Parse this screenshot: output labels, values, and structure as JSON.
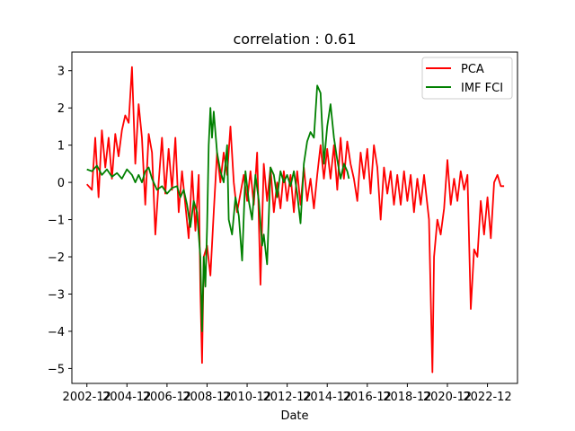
{
  "chart_data": {
    "type": "line",
    "title": "correlation : 0.61",
    "xlabel": "Date",
    "ylabel": "",
    "xlim": [
      "2002-03",
      "2024-06"
    ],
    "ylim": [
      -5.4,
      3.5
    ],
    "xticks": [
      "2002-12",
      "2004-12",
      "2006-12",
      "2008-12",
      "2010-12",
      "2012-12",
      "2014-12",
      "2016-12",
      "2018-12",
      "2020-12",
      "2022-12"
    ],
    "yticks": [
      3,
      2,
      1,
      0,
      -1,
      -2,
      -3,
      -4,
      -5
    ],
    "grid": false,
    "legend": "top-right",
    "series": [
      {
        "name": "PCA",
        "color": "#ff0000",
        "points": [
          [
            "2002-12",
            -0.05
          ],
          [
            "2003-03",
            -0.2
          ],
          [
            "2003-05",
            1.2
          ],
          [
            "2003-07",
            -0.4
          ],
          [
            "2003-09",
            1.4
          ],
          [
            "2003-11",
            0.4
          ],
          [
            "2004-01",
            1.2
          ],
          [
            "2004-03",
            0.1
          ],
          [
            "2004-05",
            1.3
          ],
          [
            "2004-07",
            0.7
          ],
          [
            "2004-09",
            1.4
          ],
          [
            "2004-11",
            1.8
          ],
          [
            "2005-01",
            1.6
          ],
          [
            "2005-03",
            3.1
          ],
          [
            "2005-05",
            0.5
          ],
          [
            "2005-07",
            2.1
          ],
          [
            "2005-09",
            1.2
          ],
          [
            "2005-11",
            -0.6
          ],
          [
            "2006-01",
            1.3
          ],
          [
            "2006-03",
            0.8
          ],
          [
            "2006-05",
            -1.4
          ],
          [
            "2006-07",
            0.0
          ],
          [
            "2006-09",
            1.2
          ],
          [
            "2006-11",
            -0.3
          ],
          [
            "2007-01",
            0.9
          ],
          [
            "2007-03",
            -0.2
          ],
          [
            "2007-05",
            1.2
          ],
          [
            "2007-07",
            -0.8
          ],
          [
            "2007-09",
            0.3
          ],
          [
            "2007-11",
            -0.6
          ],
          [
            "2008-01",
            -1.5
          ],
          [
            "2008-03",
            0.3
          ],
          [
            "2008-05",
            -1.3
          ],
          [
            "2008-07",
            0.2
          ],
          [
            "2008-08",
            -2.9
          ],
          [
            "2008-09",
            -4.85
          ],
          [
            "2008-10",
            -2.0
          ],
          [
            "2008-12",
            -1.7
          ],
          [
            "2009-02",
            -2.5
          ],
          [
            "2009-04",
            -0.8
          ],
          [
            "2009-06",
            0.8
          ],
          [
            "2009-08",
            0.0
          ],
          [
            "2009-10",
            0.8
          ],
          [
            "2009-12",
            0.2
          ],
          [
            "2010-02",
            1.5
          ],
          [
            "2010-04",
            0.0
          ],
          [
            "2010-06",
            -0.8
          ],
          [
            "2010-08",
            -0.3
          ],
          [
            "2010-10",
            0.2
          ],
          [
            "2010-12",
            -0.5
          ],
          [
            "2011-02",
            0.3
          ],
          [
            "2011-04",
            -0.6
          ],
          [
            "2011-06",
            0.8
          ],
          [
            "2011-08",
            -2.75
          ],
          [
            "2011-10",
            0.5
          ],
          [
            "2011-12",
            -0.5
          ],
          [
            "2012-02",
            0.4
          ],
          [
            "2012-04",
            -0.8
          ],
          [
            "2012-06",
            0.0
          ],
          [
            "2012-08",
            -0.7
          ],
          [
            "2012-10",
            0.3
          ],
          [
            "2012-12",
            -0.5
          ],
          [
            "2013-02",
            0.2
          ],
          [
            "2013-04",
            -0.8
          ],
          [
            "2013-06",
            0.3
          ],
          [
            "2013-08",
            -0.6
          ],
          [
            "2013-10",
            0.4
          ],
          [
            "2013-12",
            -0.5
          ],
          [
            "2014-02",
            0.1
          ],
          [
            "2014-04",
            -0.7
          ],
          [
            "2014-06",
            0.2
          ],
          [
            "2014-08",
            1.0
          ],
          [
            "2014-10",
            0.1
          ],
          [
            "2014-12",
            0.9
          ],
          [
            "2015-02",
            0.1
          ],
          [
            "2015-04",
            1.0
          ],
          [
            "2015-06",
            -0.2
          ],
          [
            "2015-08",
            1.2
          ],
          [
            "2015-10",
            0.1
          ],
          [
            "2015-12",
            1.1
          ],
          [
            "2016-02",
            0.5
          ],
          [
            "2016-04",
            0.1
          ],
          [
            "2016-06",
            -0.5
          ],
          [
            "2016-08",
            0.8
          ],
          [
            "2016-10",
            0.1
          ],
          [
            "2016-12",
            0.9
          ],
          [
            "2017-02",
            -0.3
          ],
          [
            "2017-04",
            1.0
          ],
          [
            "2017-06",
            0.4
          ],
          [
            "2017-08",
            -1.0
          ],
          [
            "2017-10",
            0.4
          ],
          [
            "2017-12",
            -0.3
          ],
          [
            "2018-02",
            0.3
          ],
          [
            "2018-04",
            -0.6
          ],
          [
            "2018-06",
            0.2
          ],
          [
            "2018-08",
            -0.6
          ],
          [
            "2018-10",
            0.3
          ],
          [
            "2018-12",
            -0.5
          ],
          [
            "2019-02",
            0.2
          ],
          [
            "2019-04",
            -0.8
          ],
          [
            "2019-06",
            0.1
          ],
          [
            "2019-08",
            -0.6
          ],
          [
            "2019-10",
            0.2
          ],
          [
            "2020-01",
            -1.0
          ],
          [
            "2020-03",
            -5.1
          ],
          [
            "2020-04",
            -2.0
          ],
          [
            "2020-06",
            -1.0
          ],
          [
            "2020-08",
            -1.4
          ],
          [
            "2020-10",
            -0.7
          ],
          [
            "2020-12",
            0.6
          ],
          [
            "2021-02",
            -0.6
          ],
          [
            "2021-04",
            0.1
          ],
          [
            "2021-06",
            -0.5
          ],
          [
            "2021-08",
            0.3
          ],
          [
            "2021-10",
            -0.2
          ],
          [
            "2021-12",
            0.2
          ],
          [
            "2022-02",
            -3.4
          ],
          [
            "2022-04",
            -1.8
          ],
          [
            "2022-06",
            -2.0
          ],
          [
            "2022-08",
            -0.5
          ],
          [
            "2022-10",
            -1.4
          ],
          [
            "2022-12",
            -0.4
          ],
          [
            "2023-02",
            -1.5
          ],
          [
            "2023-04",
            0.0
          ],
          [
            "2023-06",
            0.2
          ],
          [
            "2023-08",
            -0.1
          ],
          [
            "2023-10",
            -0.1
          ]
        ]
      },
      {
        "name": "IMF FCI",
        "color": "#008000",
        "points": [
          [
            "2002-12",
            0.35
          ],
          [
            "2003-03",
            0.3
          ],
          [
            "2003-06",
            0.45
          ],
          [
            "2003-09",
            0.2
          ],
          [
            "2003-12",
            0.35
          ],
          [
            "2004-03",
            0.15
          ],
          [
            "2004-06",
            0.25
          ],
          [
            "2004-09",
            0.1
          ],
          [
            "2004-12",
            0.35
          ],
          [
            "2005-03",
            0.2
          ],
          [
            "2005-05",
            0.0
          ],
          [
            "2005-07",
            0.2
          ],
          [
            "2005-09",
            0.0
          ],
          [
            "2005-11",
            0.3
          ],
          [
            "2006-01",
            0.4
          ],
          [
            "2006-03",
            0.1
          ],
          [
            "2006-06",
            -0.2
          ],
          [
            "2006-09",
            -0.1
          ],
          [
            "2006-12",
            -0.3
          ],
          [
            "2007-03",
            -0.15
          ],
          [
            "2007-06",
            -0.1
          ],
          [
            "2007-08",
            -0.4
          ],
          [
            "2007-10",
            -0.2
          ],
          [
            "2007-12",
            -0.6
          ],
          [
            "2008-02",
            -1.2
          ],
          [
            "2008-04",
            -0.5
          ],
          [
            "2008-06",
            -0.8
          ],
          [
            "2008-08",
            -2.0
          ],
          [
            "2008-09",
            -4.0
          ],
          [
            "2008-10",
            -2.0
          ],
          [
            "2008-11",
            -2.8
          ],
          [
            "2008-12",
            -1.2
          ],
          [
            "2009-01",
            1.0
          ],
          [
            "2009-02",
            2.0
          ],
          [
            "2009-03",
            1.2
          ],
          [
            "2009-04",
            1.9
          ],
          [
            "2009-06",
            0.8
          ],
          [
            "2009-08",
            0.3
          ],
          [
            "2009-10",
            0.0
          ],
          [
            "2009-12",
            1.0
          ],
          [
            "2010-01",
            -1.0
          ],
          [
            "2010-03",
            -1.4
          ],
          [
            "2010-05",
            -0.4
          ],
          [
            "2010-07",
            -0.9
          ],
          [
            "2010-09",
            -2.1
          ],
          [
            "2010-11",
            0.3
          ],
          [
            "2011-01",
            -0.5
          ],
          [
            "2011-03",
            -1.0
          ],
          [
            "2011-05",
            0.2
          ],
          [
            "2011-07",
            -0.5
          ],
          [
            "2011-09",
            -1.7
          ],
          [
            "2011-10",
            -1.4
          ],
          [
            "2011-12",
            -2.2
          ],
          [
            "2012-02",
            0.4
          ],
          [
            "2012-04",
            0.2
          ],
          [
            "2012-06",
            -0.4
          ],
          [
            "2012-08",
            0.3
          ],
          [
            "2012-10",
            0.0
          ],
          [
            "2012-12",
            0.2
          ],
          [
            "2013-02",
            -0.1
          ],
          [
            "2013-04",
            0.3
          ],
          [
            "2013-06",
            -0.3
          ],
          [
            "2013-08",
            -1.1
          ],
          [
            "2013-10",
            0.5
          ],
          [
            "2013-12",
            1.1
          ],
          [
            "2014-02",
            1.35
          ],
          [
            "2014-04",
            1.2
          ],
          [
            "2014-06",
            2.6
          ],
          [
            "2014-08",
            2.4
          ],
          [
            "2014-10",
            0.5
          ],
          [
            "2014-12",
            1.5
          ],
          [
            "2015-02",
            2.1
          ],
          [
            "2015-04",
            1.2
          ],
          [
            "2015-06",
            0.6
          ],
          [
            "2015-08",
            0.1
          ],
          [
            "2015-10",
            0.5
          ],
          [
            "2015-12",
            0.3
          ],
          [
            "2016-01",
            0.1
          ]
        ]
      }
    ]
  }
}
